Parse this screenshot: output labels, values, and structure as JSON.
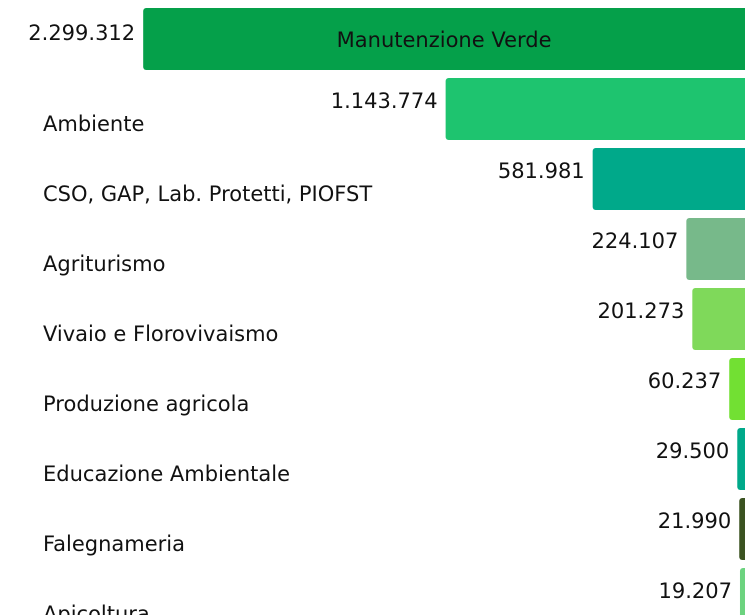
{
  "chart_data": {
    "type": "bar",
    "orientation": "horizontal",
    "categories": [
      "Manutenzione Verde",
      "Ambiente",
      "CSO, GAP, Lab. Protetti, PIOFST",
      "Agriturismo",
      "Vivaio e Florovivaismo",
      "Produzione agricola",
      "Educazione Ambientale",
      "Falegnameria",
      "Apicoltura"
    ],
    "values": [
      2299312,
      1143774,
      581981,
      224107,
      201273,
      60237,
      29500,
      21990,
      19207
    ],
    "value_labels": [
      "2.299.312",
      "1.143.774",
      "581.981",
      "224.107",
      "201.273",
      "60.237",
      "29.500",
      "21.990",
      "19.207"
    ],
    "colors": [
      "#05a04a",
      "#1ec46f",
      "#00a98a",
      "#77b98a",
      "#7fd95a",
      "#72e033",
      "#00a98a",
      "#3b5321",
      "#6cd37f"
    ],
    "xlim": [
      0,
      2300000
    ]
  }
}
